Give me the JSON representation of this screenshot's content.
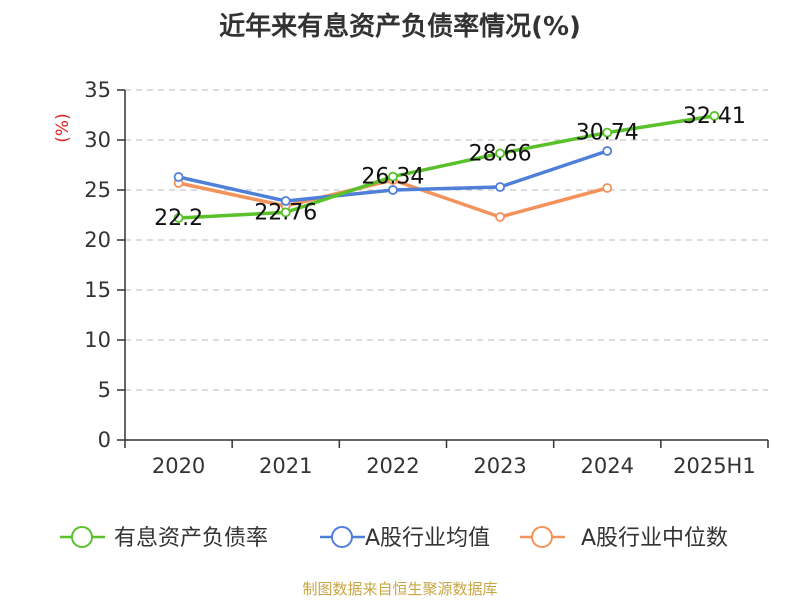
{
  "title": "近年来有息资产负债率情况(%)",
  "source": "制图数据来自恒生聚源数据库",
  "chart_data": {
    "type": "line",
    "title": "近年来有息资产负债率情况(%)",
    "ylabel": "(%)",
    "xlabel": "",
    "ylim": [
      0,
      35
    ],
    "yticks": [
      0,
      5,
      10,
      15,
      20,
      25,
      30,
      35
    ],
    "grid": true,
    "legend_position": "bottom",
    "categories": [
      "2020",
      "2021",
      "2022",
      "2023",
      "2024",
      "2025H1"
    ],
    "series": [
      {
        "name": "有息资产负债率",
        "color": "#5ac12b",
        "values": [
          22.2,
          22.76,
          26.34,
          28.66,
          30.74,
          32.41
        ],
        "labels": [
          "22.2",
          "22.76",
          "26.34",
          "28.66",
          "30.74",
          "32.41"
        ]
      },
      {
        "name": "A股行业均值",
        "color": "#4f7fd9",
        "values": [
          26.3,
          23.9,
          25.0,
          25.3,
          28.9,
          null
        ]
      },
      {
        "name": "A股行业中位数",
        "color": "#f3935b",
        "values": [
          25.7,
          23.4,
          26.0,
          22.3,
          25.2,
          null
        ]
      }
    ]
  }
}
